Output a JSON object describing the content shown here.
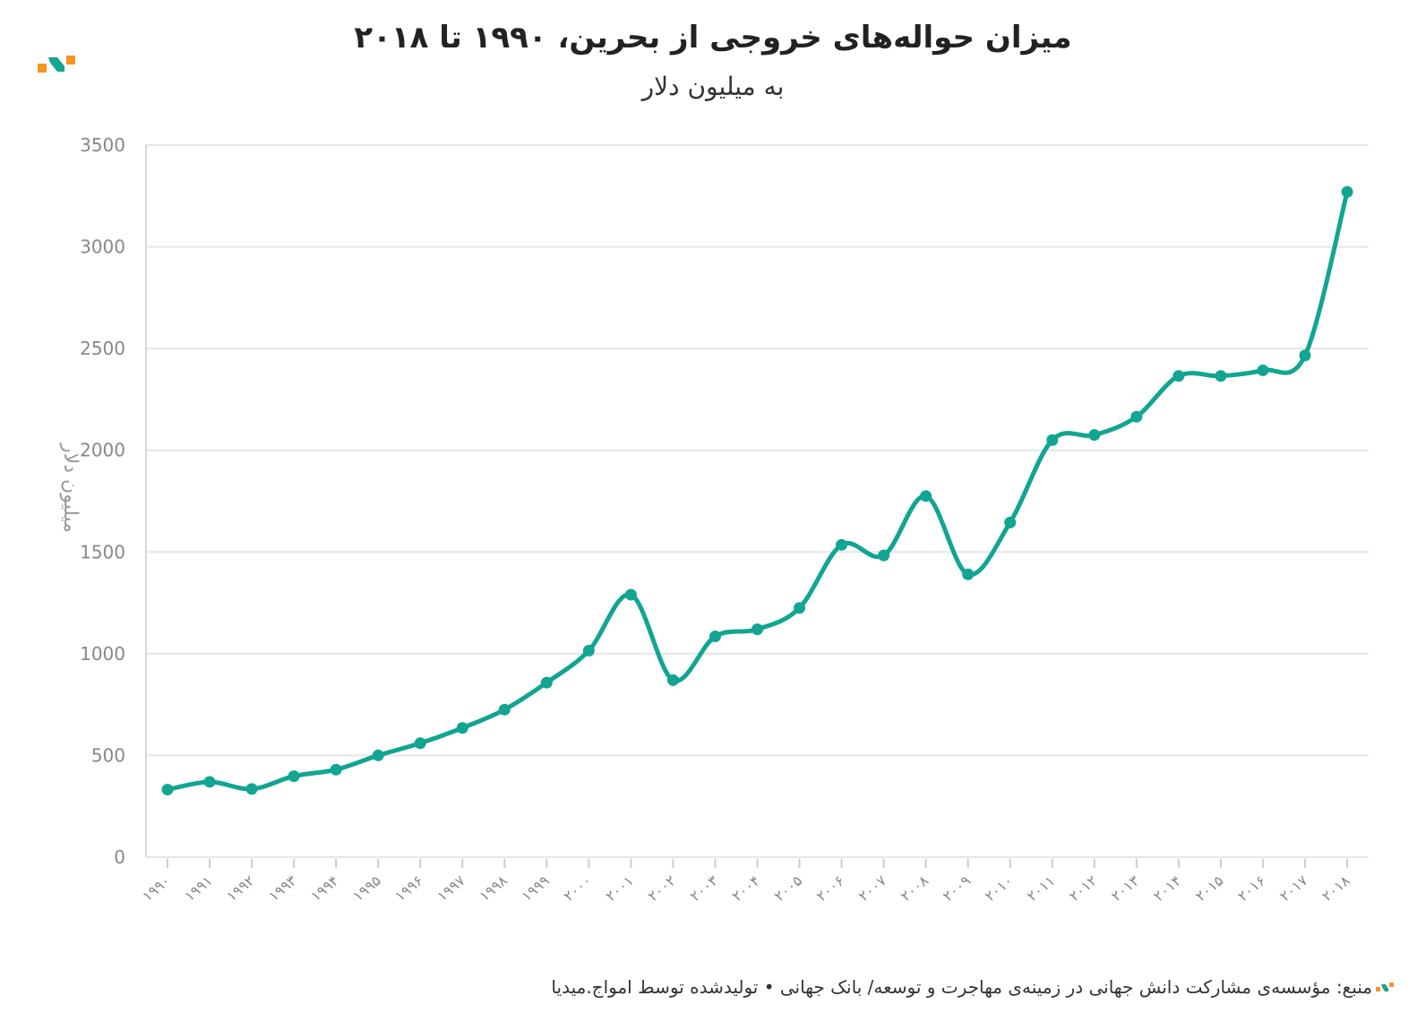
{
  "title": "میزان حواله‌های خروجی از بحرین، ۱۹۹۰ تا ۲۰۱۸",
  "subtitle": "به میلیون دلار",
  "footer": "منبع: مؤسسه‌ی مشارکت دانش جهانی در زمینه‌ی مهاجرت و توسعه/ بانک جهانی • تولیدشده توسط امواج.میدیا",
  "colors": {
    "line": "#11a592",
    "grid": "#e6e6e6",
    "axis_text": "#888888",
    "logo_orange": "#f7931e",
    "logo_teal": "#11a592"
  },
  "chart_data": {
    "type": "line",
    "ylabel": "میلیون دلار",
    "ylim": [
      0,
      3500
    ],
    "yticks": [
      "0",
      "500",
      "1000",
      "1500",
      "2000",
      "2500",
      "3000",
      "3500"
    ],
    "grid": true,
    "categories": [
      "۱۹۹۰",
      "۱۹۹۱",
      "۱۹۹۲",
      "۱۹۹۳",
      "۱۹۹۴",
      "۱۹۹۵",
      "۱۹۹۶",
      "۱۹۹۷",
      "۱۹۹۸",
      "۱۹۹۹",
      "۲۰۰۰",
      "۲۰۰۱",
      "۲۰۰۲",
      "۲۰۰۳",
      "۲۰۰۴",
      "۲۰۰۵",
      "۲۰۰۶",
      "۲۰۰۷",
      "۲۰۰۸",
      "۲۰۰۹",
      "۲۰۱۰",
      "۲۰۱۱",
      "۲۰۱۲",
      "۲۰۱۳",
      "۲۰۱۴",
      "۲۰۱۵",
      "۲۰۱۶",
      "۲۰۱۷",
      "۲۰۱۸"
    ],
    "values": [
      332,
      370,
      335,
      398,
      430,
      500,
      560,
      635,
      725,
      858,
      1015,
      1290,
      870,
      1085,
      1120,
      1225,
      1535,
      1483,
      1775,
      1390,
      1645,
      2050,
      2075,
      2165,
      2365,
      2365,
      2393,
      2466,
      3270
    ]
  }
}
